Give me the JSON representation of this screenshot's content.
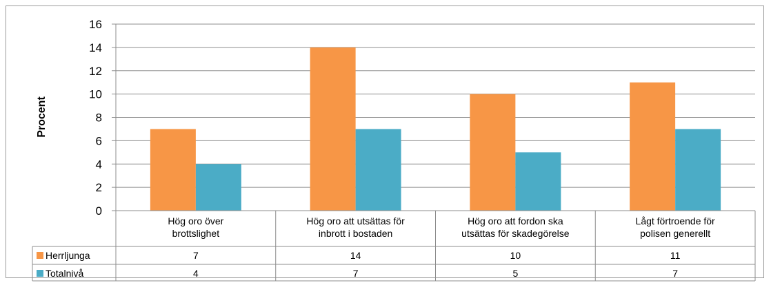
{
  "chart_data": {
    "type": "bar",
    "ylabel": "Procent",
    "ylim": [
      0,
      16
    ],
    "yticks": [
      0,
      2,
      4,
      6,
      8,
      10,
      12,
      14,
      16
    ],
    "grid": "horizontal",
    "categories": [
      [
        "Hög oro över",
        "brottslighet"
      ],
      [
        "Hög oro att utsättas för",
        "inbrott i bostaden"
      ],
      [
        "Hög oro att fordon ska",
        "utsättas för skadegörelse"
      ],
      [
        "Lågt förtroende för",
        "polisen generellt"
      ]
    ],
    "series": [
      {
        "name": "Herrljunga",
        "color": "#f79646",
        "values": [
          7,
          14,
          10,
          11
        ],
        "labels": [
          "7",
          "14",
          "10",
          "11"
        ]
      },
      {
        "name": "Totalnivå",
        "color": "#4bacc6",
        "values": [
          4,
          7,
          5,
          7
        ],
        "labels": [
          "4",
          "7",
          "5",
          "7"
        ]
      }
    ],
    "legend": "data-table"
  }
}
